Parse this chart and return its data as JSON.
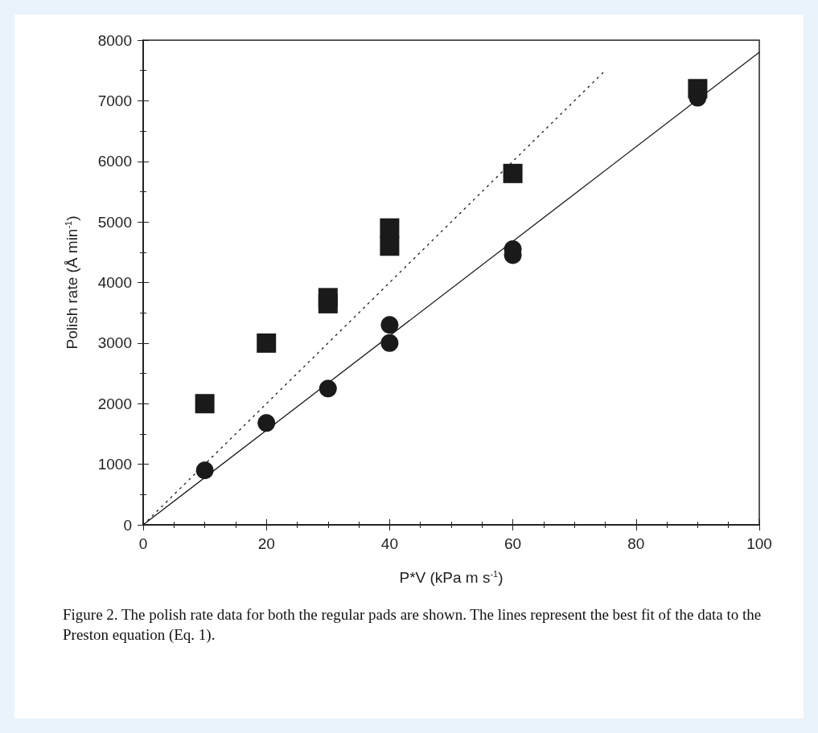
{
  "chart_data": {
    "type": "scatter",
    "xlabel": "P*V (kPa m s$^{-1}$)",
    "ylabel": "Polish rate (Å min$^{-1}$)",
    "xlim": [
      0,
      100
    ],
    "xticks": [
      0,
      20,
      40,
      60,
      80,
      100
    ],
    "ylim": [
      0,
      8000
    ],
    "yticks": [
      0,
      1000,
      2000,
      3000,
      4000,
      5000,
      6000,
      7000,
      8000
    ],
    "grid": false,
    "series": [
      {
        "marker": "circle",
        "color": "#1a1a1a",
        "x": [
          10,
          20,
          30,
          40,
          40,
          60,
          60,
          90
        ],
        "values": [
          900,
          1680,
          2250,
          3000,
          3300,
          4450,
          4550,
          7050
        ]
      },
      {
        "marker": "square",
        "color": "#1a1a1a",
        "x": [
          10,
          20,
          30,
          30,
          40,
          40,
          60,
          90
        ],
        "values": [
          2000,
          3000,
          3650,
          3750,
          4600,
          4900,
          5800,
          7200
        ]
      },
      {
        "type": "line",
        "line_style": "solid",
        "marker": "none",
        "color": "#1a1a1a",
        "x": [
          0,
          100
        ],
        "values": [
          0,
          7800
        ]
      },
      {
        "type": "line",
        "line_style": "dotted",
        "marker": "none",
        "color": "#1a1a1a",
        "x": [
          0,
          75
        ],
        "values": [
          0,
          7500
        ]
      }
    ],
    "annotations": [
      "Figure 2. The polish rate data for both the regular pads are shown. The lines represent the best fit of the data to the Preston equation (Eq. 1)."
    ]
  }
}
